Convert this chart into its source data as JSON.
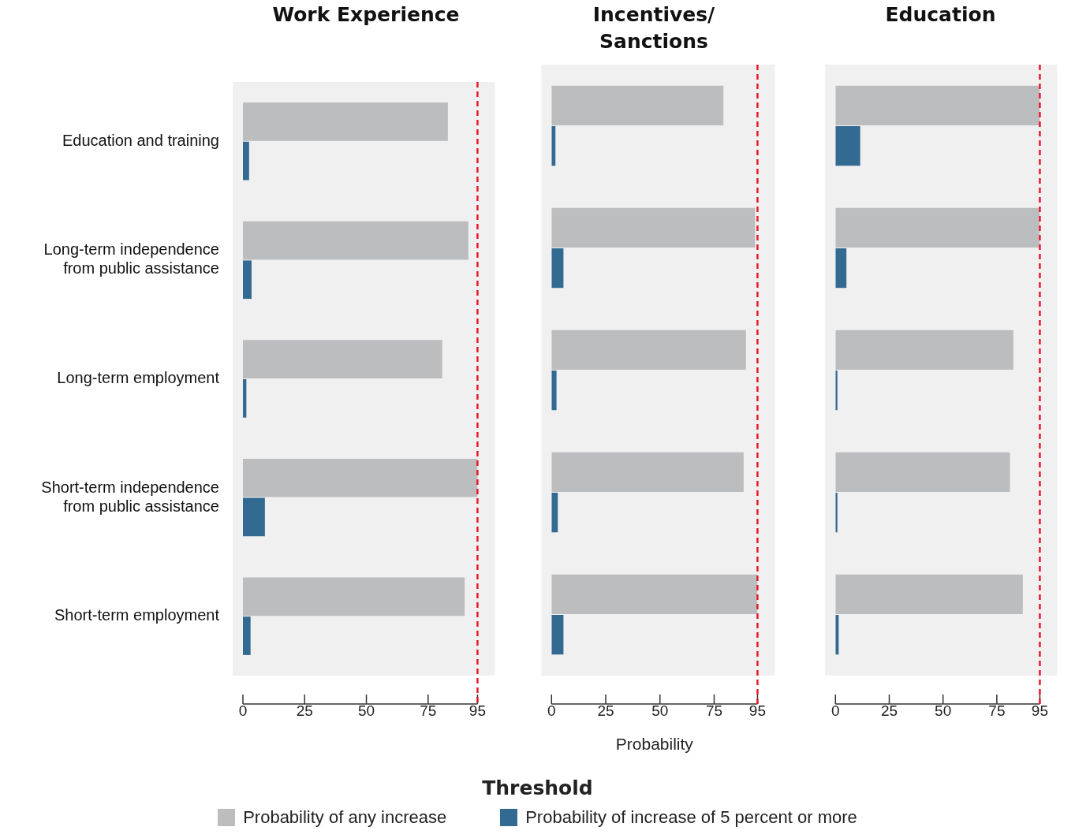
{
  "chart_data": [
    {
      "type": "bar",
      "orientation": "horizontal",
      "title": "Work Experience",
      "categories": [
        "Education and training",
        "Long-term independence from public assistance",
        "Long-term employment",
        "Short-term independence from public assistance",
        "Short-term employment"
      ],
      "series": [
        {
          "color": "#bcbdbf",
          "values": [
            83,
            91.3,
            80.7,
            95,
            89.8
          ]
        },
        {
          "color": "#336a92",
          "values": [
            2.5,
            3.5,
            1.4,
            8.9,
            3.1
          ]
        }
      ],
      "xlim": [
        0,
        95
      ],
      "xticks": [
        0,
        25,
        50,
        75,
        95
      ],
      "ref_lines": [
        {
          "axis": "x",
          "value": 95,
          "color": "#e8192c",
          "line_style": "dashed"
        }
      ]
    },
    {
      "type": "bar",
      "orientation": "horizontal",
      "title": "Incentives/ Sanctions",
      "xlabel": "Probability",
      "legend": "bottom",
      "legend_title": "Threshold",
      "categories": [
        null,
        null,
        null,
        null,
        null
      ],
      "series": [
        {
          "name": "Probability of any increase",
          "color": "#bcbdbf",
          "values": [
            79.3,
            93.9,
            89.7,
            88.6,
            95
          ]
        },
        {
          "name": "Probability of increase of 5 percent or more",
          "color": "#336a92",
          "values": [
            1.8,
            5.5,
            2.3,
            2.9,
            5.5
          ]
        }
      ],
      "xlim": [
        0,
        95
      ],
      "xticks": [
        0,
        25,
        50,
        75,
        95
      ],
      "tick_labels": "x",
      "ref_lines": [
        {
          "axis": "x",
          "value": 95,
          "color": "#e8192c",
          "line_style": "dashed"
        }
      ]
    },
    {
      "type": "bar",
      "orientation": "horizontal",
      "title": "Education",
      "categories": [
        null,
        null,
        null,
        null,
        null
      ],
      "series": [
        {
          "color": "#bcbdbf",
          "values": [
            95,
            95,
            82.7,
            81.1,
            87.1
          ]
        },
        {
          "color": "#336a92",
          "values": [
            11.5,
            5.1,
            0.9,
            0.9,
            1.5
          ]
        }
      ],
      "xlim": [
        0,
        95
      ],
      "xticks": [
        0,
        25,
        50,
        75,
        95
      ],
      "tick_labels": "x",
      "ref_lines": [
        {
          "axis": "x",
          "value": 95,
          "color": "#e8192c",
          "line_style": "dashed"
        }
      ]
    }
  ]
}
